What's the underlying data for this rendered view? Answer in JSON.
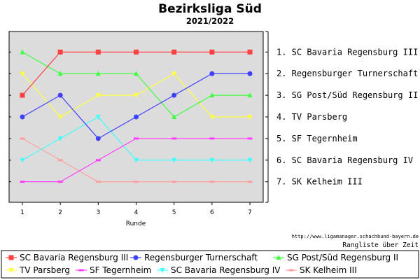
{
  "chart_data": {
    "type": "line",
    "title": "Bezirksliga Süd",
    "subtitle": "2021/2022",
    "xlabel": "Runde",
    "ylabel": "",
    "x": [
      1,
      2,
      3,
      4,
      5,
      6,
      7
    ],
    "y_range": [
      1,
      7
    ],
    "y_inverted": true,
    "grid": false,
    "legend_position": "bottom",
    "rank_labels": [
      "1. SC Bavaria Regensburg III",
      "2. Regensburger Turnerschaft",
      "3. SG Post/Süd Regensburg II",
      "4. TV Parsberg",
      "5. SF Tegernheim",
      "6. SC Bavaria Regensburg IV",
      "7. SK Kelheim III"
    ],
    "source_url": "http://www.ligamanager.schachbund-bayern.de",
    "note": "Rangliste über Zeit",
    "series": [
      {
        "name": "SC Bavaria Regensburg III",
        "color": "#ff4040",
        "marker": "square",
        "values": [
          3,
          1,
          1,
          1,
          1,
          1,
          1
        ]
      },
      {
        "name": "Regensburger Turnerschaft",
        "color": "#4040ff",
        "marker": "circle",
        "values": [
          4,
          3,
          5,
          4,
          3,
          2,
          2
        ]
      },
      {
        "name": "SG Post/Süd Regensburg II",
        "color": "#40ff40",
        "marker": "triangle-up",
        "values": [
          1,
          2,
          2,
          2,
          4,
          3,
          3
        ]
      },
      {
        "name": "TV Parsberg",
        "color": "#ffff40",
        "marker": "triangle-down",
        "values": [
          2,
          4,
          3,
          3,
          2,
          4,
          4
        ]
      },
      {
        "name": "SF Tegernheim",
        "color": "#ff40ff",
        "marker": "dash",
        "values": [
          7,
          7,
          6,
          5,
          5,
          5,
          5
        ]
      },
      {
        "name": "SC Bavaria Regensburg IV",
        "color": "#40ffff",
        "marker": "triangle-down",
        "values": [
          6,
          5,
          4,
          6,
          6,
          6,
          6
        ]
      },
      {
        "name": "SK Kelheim III",
        "color": "#ffa0a0",
        "marker": "dash",
        "values": [
          5,
          6,
          7,
          7,
          7,
          7,
          7
        ]
      }
    ]
  }
}
